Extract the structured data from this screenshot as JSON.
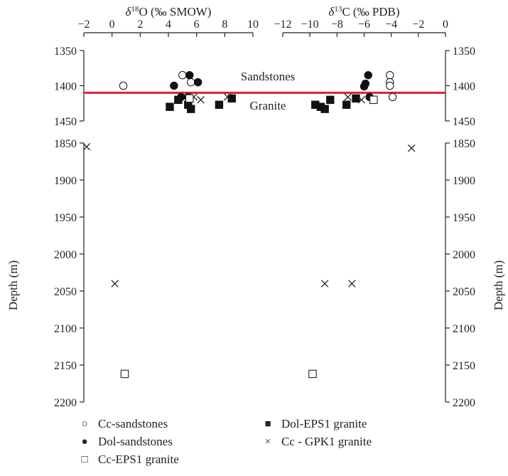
{
  "chart_data": {
    "type": "scatter",
    "xlabel_left_prefix": "δ",
    "xlabel_left_sup": "18",
    "xlabel_left_suffix": "O (‰ SMOW)",
    "xlabel_right_prefix": "δ",
    "xlabel_right_sup": "13",
    "xlabel_right_suffix": "C (‰ PDB)",
    "ylabel": "Depth (m)",
    "left_x_range": [
      -2,
      10
    ],
    "right_x_range": [
      -12,
      0
    ],
    "left_x_ticks": [
      "−2",
      "0",
      "2",
      "4",
      "6",
      "8",
      "10"
    ],
    "right_x_ticks": [
      "−12",
      "−10",
      "−8",
      "−6",
      "−4",
      "−2",
      "0"
    ],
    "y_upper_range": [
      1350,
      1450
    ],
    "y_lower_range": [
      1850,
      2200
    ],
    "y_upper_ticks": [
      "1350",
      "1400",
      "1450"
    ],
    "y_lower_ticks": [
      "1850",
      "1900",
      "1950",
      "2000",
      "2050",
      "2100",
      "2150",
      "2200"
    ],
    "boundary_depth": 1410,
    "boundary_color": "#d8262b",
    "annotations": {
      "above": "Sandstones",
      "below": "Granite"
    },
    "series": [
      {
        "name": "Cc-sandstones",
        "marker": "open-circle",
        "d18O": [
          {
            "x": 0.8,
            "y": 1400
          },
          {
            "x": 5.0,
            "y": 1385
          },
          {
            "x": 5.6,
            "y": 1395
          }
        ],
        "d13C": [
          {
            "x": -4.1,
            "y": 1385
          },
          {
            "x": -4.1,
            "y": 1395
          },
          {
            "x": -4.1,
            "y": 1400
          },
          {
            "x": -3.9,
            "y": 1416
          }
        ]
      },
      {
        "name": "Dol-sandstones",
        "marker": "filled-circle",
        "d18O": [
          {
            "x": 4.4,
            "y": 1400
          },
          {
            "x": 5.5,
            "y": 1385
          },
          {
            "x": 6.1,
            "y": 1395
          },
          {
            "x": 4.9,
            "y": 1416
          },
          {
            "x": 5.4,
            "y": 1416
          }
        ],
        "d13C": [
          {
            "x": -5.7,
            "y": 1385
          },
          {
            "x": -5.9,
            "y": 1397
          },
          {
            "x": -6.0,
            "y": 1401
          },
          {
            "x": -5.6,
            "y": 1416
          }
        ]
      },
      {
        "name": "Dol-EPS1 granite",
        "marker": "filled-square",
        "d18O": [
          {
            "x": 4.1,
            "y": 1430
          },
          {
            "x": 4.7,
            "y": 1420
          },
          {
            "x": 5.4,
            "y": 1427
          },
          {
            "x": 5.6,
            "y": 1433
          },
          {
            "x": 7.6,
            "y": 1427
          },
          {
            "x": 8.5,
            "y": 1418
          }
        ],
        "d13C": [
          {
            "x": -9.6,
            "y": 1427
          },
          {
            "x": -9.2,
            "y": 1430
          },
          {
            "x": -8.9,
            "y": 1433
          },
          {
            "x": -8.5,
            "y": 1420
          },
          {
            "x": -7.3,
            "y": 1427
          },
          {
            "x": -6.6,
            "y": 1418
          }
        ]
      },
      {
        "name": "Cc - GPK1 granite",
        "marker": "cross",
        "d18O": [
          {
            "x": 5.8,
            "y": 1416
          },
          {
            "x": 6.3,
            "y": 1420
          },
          {
            "x": 8.2,
            "y": 1416
          },
          {
            "x": -1.8,
            "y": 1855
          },
          {
            "x": 0.2,
            "y": 2040
          }
        ],
        "d13C": [
          {
            "x": -7.2,
            "y": 1416
          },
          {
            "x": -6.2,
            "y": 1420
          },
          {
            "x": -2.5,
            "y": 1857
          },
          {
            "x": -8.9,
            "y": 2040
          },
          {
            "x": -6.9,
            "y": 2040
          }
        ]
      },
      {
        "name": "Cc-EPS1 granite",
        "marker": "open-square",
        "d18O": [
          {
            "x": 5.5,
            "y": 1418
          },
          {
            "x": 0.9,
            "y": 2162
          }
        ],
        "d13C": [
          {
            "x": -5.3,
            "y": 1420
          },
          {
            "x": -9.8,
            "y": 2162
          }
        ]
      }
    ],
    "legend_placement": "bottom"
  }
}
